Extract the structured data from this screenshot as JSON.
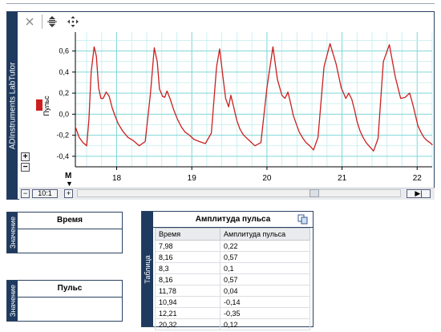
{
  "app": {
    "brand": "ADInstruments LabTutor"
  },
  "toolbar": {
    "items": [
      {
        "name": "close-icon",
        "glyph": "✕"
      },
      {
        "name": "fit-vertical-icon",
        "glyph": "⇕"
      },
      {
        "name": "move-icon",
        "glyph": "✥"
      }
    ]
  },
  "chart": {
    "legend_label": "Пульс",
    "series_color": "#cc1f1f",
    "zoom_in": "+",
    "zoom_out": "−",
    "marker_label": "M",
    "zoom_ratio": "10:1",
    "scroll_end": "▶|"
  },
  "chart_data": {
    "type": "line",
    "title": "",
    "xlabel": "",
    "ylabel": "",
    "xlim": [
      17.45,
      22.2
    ],
    "ylim": [
      -0.5,
      0.78
    ],
    "grid": true,
    "x_ticks": [
      18,
      19,
      20,
      21,
      22
    ],
    "y_ticks": [
      0.6,
      0.4,
      0.2,
      0.0,
      -0.2,
      -0.4
    ],
    "x_tick_labels": [
      "18",
      "19",
      "20",
      "21",
      "22"
    ],
    "y_tick_labels": [
      "0,6",
      "0,4",
      "0,2",
      "0,0",
      "-0,2",
      "-0,4"
    ],
    "series": [
      {
        "name": "Пульс",
        "x": [
          17.45,
          17.5,
          17.55,
          17.6,
          17.63,
          17.66,
          17.7,
          17.73,
          17.76,
          17.79,
          17.82,
          17.86,
          17.9,
          17.94,
          17.98,
          18.02,
          18.08,
          18.15,
          18.22,
          18.3,
          18.38,
          18.45,
          18.5,
          18.54,
          18.57,
          18.61,
          18.64,
          18.67,
          18.71,
          18.76,
          18.81,
          18.86,
          18.91,
          18.97,
          19.03,
          19.1,
          19.18,
          19.26,
          19.33,
          19.37,
          19.42,
          19.45,
          19.49,
          19.52,
          19.56,
          19.6,
          19.64,
          19.68,
          19.72,
          19.78,
          19.84,
          19.92,
          20.0,
          20.08,
          20.14,
          20.2,
          20.24,
          20.28,
          20.32,
          20.35,
          20.39,
          20.43,
          20.48,
          20.52,
          20.57,
          20.62,
          20.68,
          20.76,
          20.84,
          20.92,
          20.99,
          21.05,
          21.09,
          21.13,
          21.17,
          21.2,
          21.24,
          21.28,
          21.32,
          21.37,
          21.42,
          21.48,
          21.55,
          21.63,
          21.71,
          21.78,
          21.84,
          21.9,
          21.94,
          21.98,
          22.01,
          22.05,
          22.09,
          22.13,
          22.17,
          22.2
        ],
        "y": [
          -0.12,
          -0.22,
          -0.27,
          -0.3,
          -0.05,
          0.4,
          0.64,
          0.55,
          0.25,
          0.15,
          0.15,
          0.21,
          0.17,
          0.06,
          -0.02,
          -0.09,
          -0.16,
          -0.22,
          -0.25,
          -0.3,
          -0.26,
          0.2,
          0.63,
          0.5,
          0.24,
          0.17,
          0.16,
          0.22,
          0.15,
          0.04,
          -0.05,
          -0.12,
          -0.17,
          -0.2,
          -0.24,
          -0.26,
          -0.28,
          -0.18,
          0.45,
          0.62,
          0.32,
          0.15,
          0.07,
          0.18,
          0.06,
          -0.06,
          -0.14,
          -0.19,
          -0.22,
          -0.26,
          -0.3,
          -0.27,
          0.25,
          0.64,
          0.33,
          0.18,
          0.15,
          0.21,
          0.09,
          -0.01,
          -0.09,
          -0.17,
          -0.23,
          -0.27,
          -0.3,
          -0.34,
          -0.22,
          0.45,
          0.67,
          0.48,
          0.25,
          0.15,
          0.2,
          0.14,
          0.03,
          -0.07,
          -0.16,
          -0.22,
          -0.27,
          -0.31,
          -0.35,
          -0.23,
          0.5,
          0.66,
          0.35,
          0.15,
          0.16,
          0.2,
          0.1,
          -0.02,
          -0.11,
          -0.17,
          -0.22,
          -0.25,
          -0.27,
          -0.29
        ]
      }
    ]
  },
  "time_box": {
    "header": "Время",
    "side_label": "Значение",
    "value": ""
  },
  "pulse_box": {
    "header": "Пульс",
    "side_label": "Значение",
    "value": ""
  },
  "table": {
    "side_label": "Таблица",
    "title": "Амплитуда пульса",
    "columns": [
      "Время",
      "Амплитуда пульса"
    ],
    "rows": [
      [
        "7,98",
        "0,22"
      ],
      [
        "8,16",
        "0,57"
      ],
      [
        "8,3",
        "0,1"
      ],
      [
        "8,16",
        "0,57"
      ],
      [
        "11,78",
        "0,04"
      ],
      [
        "10,94",
        "-0,14"
      ],
      [
        "12,21",
        "-0,35"
      ],
      [
        "20,32",
        "0,12"
      ]
    ]
  }
}
